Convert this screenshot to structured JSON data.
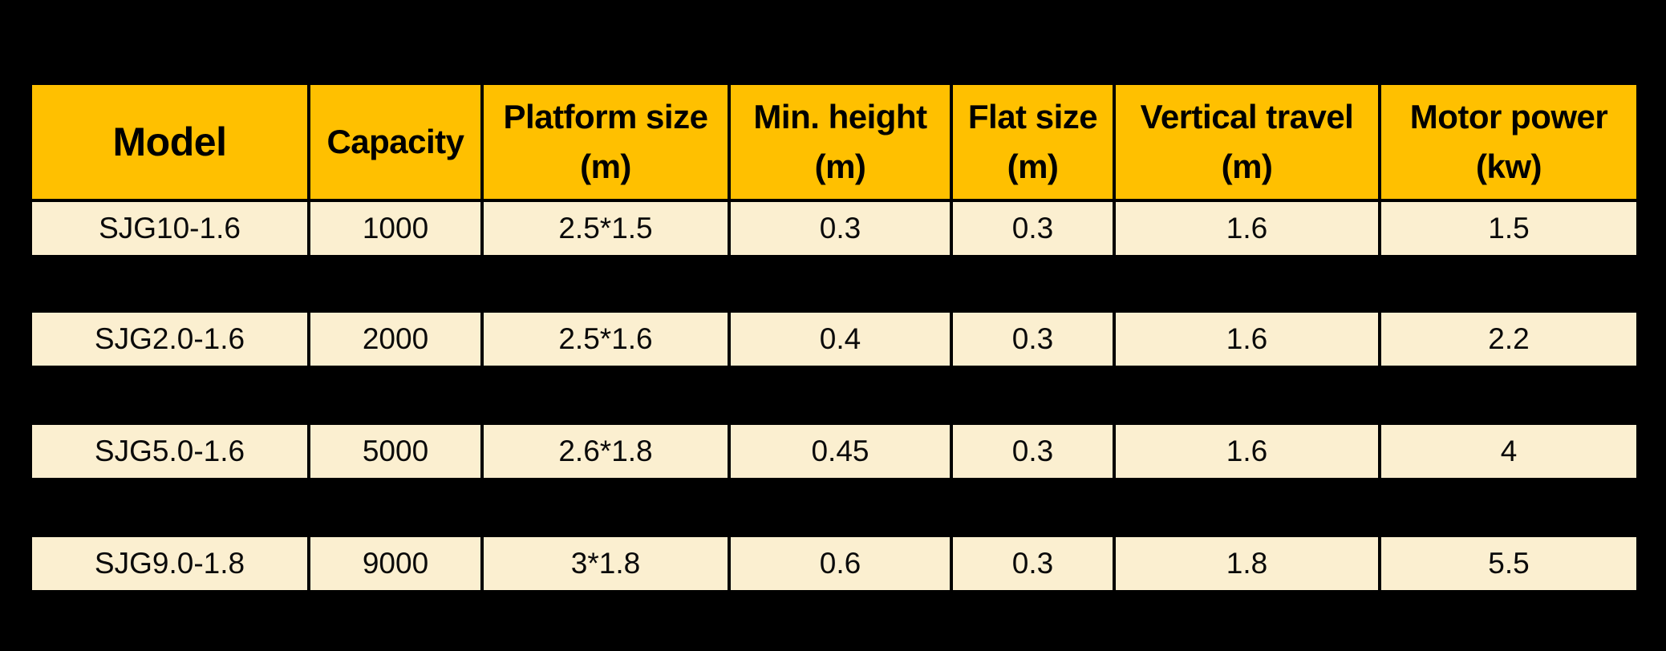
{
  "colors": {
    "page_background": "#000000",
    "header_background": "#FFC000",
    "row_background": "#FBEFD0",
    "border": "#000000",
    "text": "#000000"
  },
  "table": {
    "columns": [
      {
        "label": "Model",
        "unit": ""
      },
      {
        "label": "Capacity",
        "unit": ""
      },
      {
        "label": "Platform size",
        "unit": "(m)"
      },
      {
        "label": "Min. height",
        "unit": "(m)"
      },
      {
        "label": "Flat size",
        "unit": "(m)"
      },
      {
        "label": "Vertical travel",
        "unit": "(m)"
      },
      {
        "label": "Motor power",
        "unit": "(kw)"
      }
    ],
    "rows": [
      [
        "SJG10-1.6",
        "1000",
        "2.5*1.5",
        "0.3",
        "0.3",
        "1.6",
        "1.5"
      ],
      [
        "SJG2.0-1.6",
        "2000",
        "2.5*1.6",
        "0.4",
        "0.3",
        "1.6",
        "2.2"
      ],
      [
        "SJG5.0-1.6",
        "5000",
        "2.6*1.8",
        "0.45",
        "0.3",
        "1.6",
        "4"
      ],
      [
        "SJG9.0-1.8",
        "9000",
        "3*1.8",
        "0.6",
        "0.3",
        "1.8",
        "5.5"
      ]
    ]
  },
  "chart_data": {
    "type": "table",
    "title": "",
    "columns": [
      "Model",
      "Capacity",
      "Platform size (m)",
      "Min. height (m)",
      "Flat size (m)",
      "Vertical travel (m)",
      "Motor power (kw)"
    ],
    "rows": [
      [
        "SJG10-1.6",
        1000,
        "2.5*1.5",
        0.3,
        0.3,
        1.6,
        1.5
      ],
      [
        "SJG2.0-1.6",
        2000,
        "2.5*1.6",
        0.4,
        0.3,
        1.6,
        2.2
      ],
      [
        "SJG5.0-1.6",
        5000,
        "2.6*1.8",
        0.45,
        0.3,
        1.6,
        4
      ],
      [
        "SJG9.0-1.8",
        9000,
        "3*1.8",
        0.6,
        0.3,
        1.8,
        5.5
      ]
    ]
  }
}
